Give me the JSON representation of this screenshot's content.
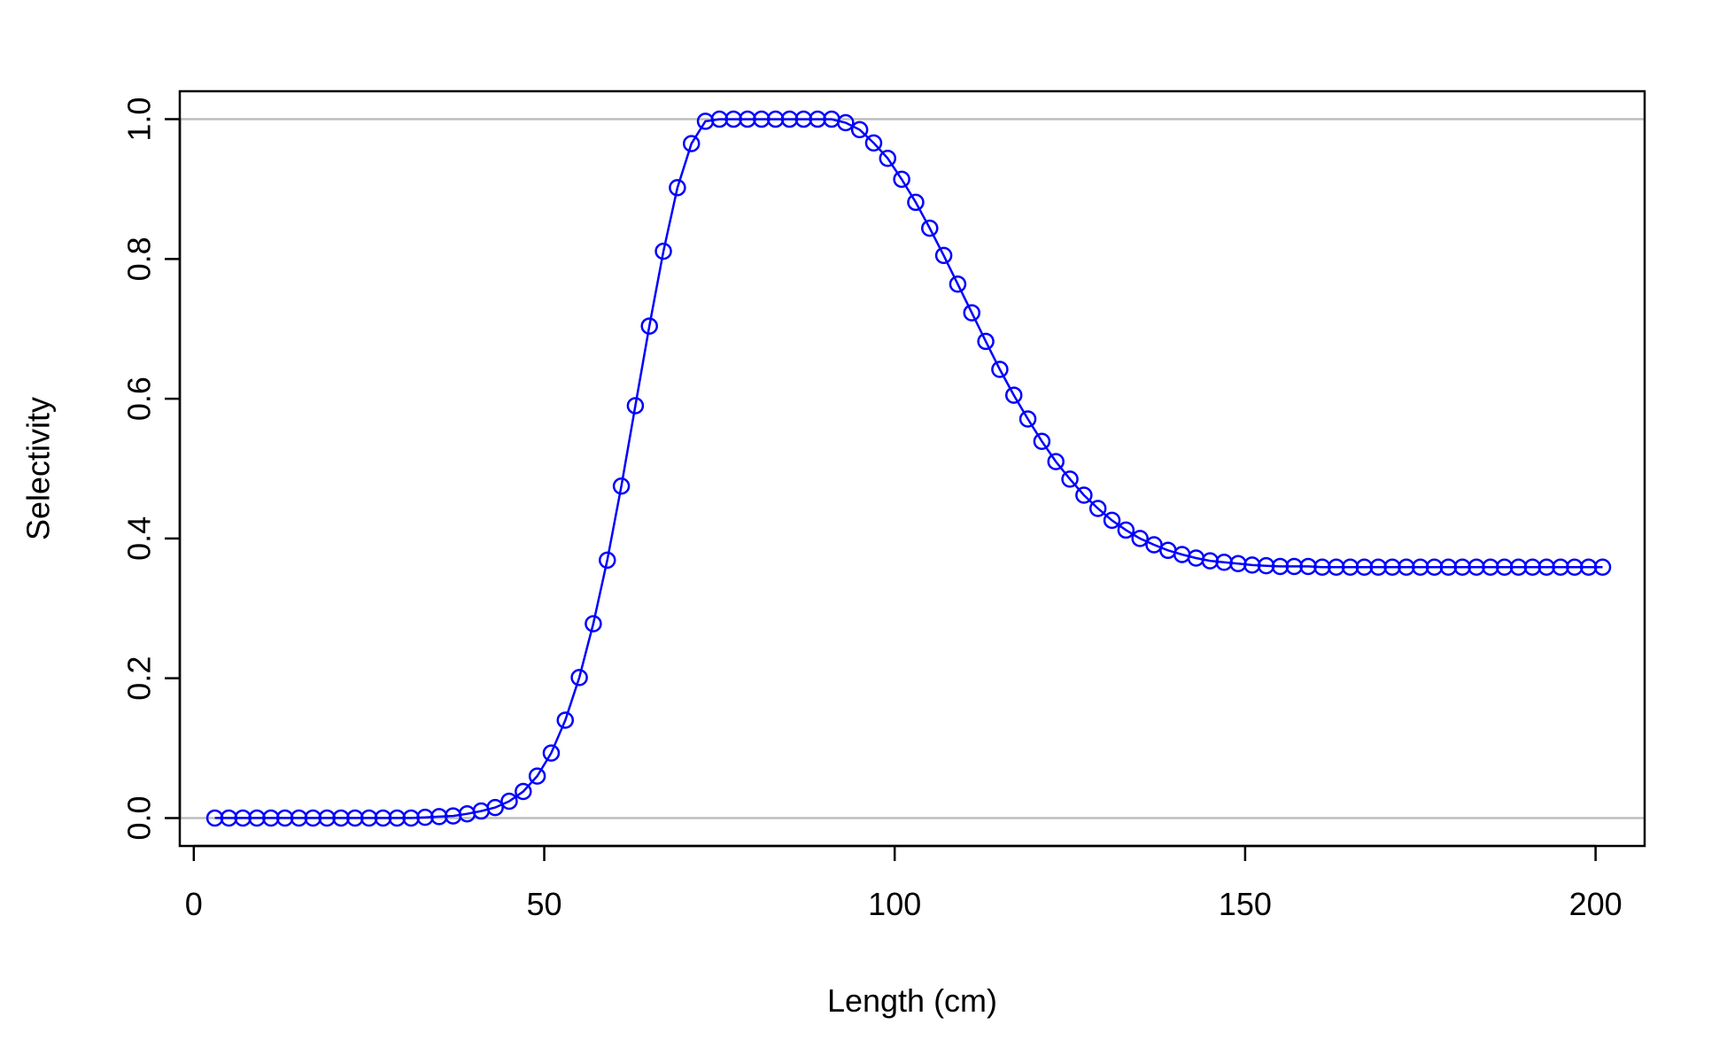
{
  "chart_data": {
    "type": "line",
    "title": "",
    "xlabel": "Length (cm)",
    "ylabel": "Selectivity",
    "xlim": [
      -2,
      207
    ],
    "ylim": [
      -0.04,
      1.04
    ],
    "x_ticks": [
      0,
      50,
      100,
      150,
      200
    ],
    "y_ticks": [
      0.0,
      0.2,
      0.4,
      0.6,
      0.8,
      1.0
    ],
    "x_tick_labels": [
      "0",
      "50",
      "100",
      "150",
      "200"
    ],
    "y_tick_labels": [
      "0.0",
      "0.2",
      "0.4",
      "0.6",
      "0.8",
      "1.0"
    ],
    "reference_lines": [
      0,
      1
    ],
    "grid": false,
    "legend": "none",
    "colors": {
      "series": "#0000ff",
      "reference": "#bebebe",
      "axis": "#000000"
    },
    "series": [
      {
        "marker": "open-circle",
        "x": [
          3,
          5,
          7,
          9,
          11,
          13,
          15,
          17,
          19,
          21,
          23,
          25,
          27,
          29,
          31,
          33,
          35,
          37,
          39,
          41,
          43,
          45,
          47,
          49,
          51,
          53,
          55,
          57,
          59,
          61,
          63,
          65,
          67,
          69,
          71,
          73,
          75,
          77,
          79,
          81,
          83,
          85,
          87,
          89,
          91,
          93,
          95,
          97,
          99,
          101,
          103,
          105,
          107,
          109,
          111,
          113,
          115,
          117,
          119,
          121,
          123,
          125,
          127,
          129,
          131,
          133,
          135,
          137,
          139,
          141,
          143,
          145,
          147,
          149,
          151,
          153,
          155,
          157,
          159,
          161,
          163,
          165,
          167,
          169,
          171,
          173,
          175,
          177,
          179,
          181,
          183,
          185,
          187,
          189,
          191,
          193,
          195,
          197,
          199,
          201
        ],
        "y": [
          0,
          0,
          0,
          0,
          0,
          0,
          0,
          0,
          0,
          0,
          0,
          0,
          0,
          0,
          0,
          0.001,
          0.002,
          0.003,
          0.006,
          0.01,
          0.015,
          0.024,
          0.038,
          0.06,
          0.093,
          0.14,
          0.201,
          0.278,
          0.369,
          0.475,
          0.59,
          0.704,
          0.811,
          0.902,
          0.965,
          0.997,
          1,
          1,
          1,
          1,
          1,
          1,
          1,
          1,
          1,
          0.995,
          0.985,
          0.966,
          0.944,
          0.914,
          0.881,
          0.844,
          0.805,
          0.764,
          0.723,
          0.682,
          0.642,
          0.605,
          0.571,
          0.539,
          0.51,
          0.485,
          0.462,
          0.443,
          0.426,
          0.412,
          0.4,
          0.391,
          0.383,
          0.377,
          0.372,
          0.368,
          0.366,
          0.364,
          0.362,
          0.361,
          0.36,
          0.36,
          0.36,
          0.359,
          0.359,
          0.359,
          0.359,
          0.359,
          0.359,
          0.359,
          0.359,
          0.359,
          0.359,
          0.359,
          0.359,
          0.359,
          0.359,
          0.359,
          0.359,
          0.359,
          0.359,
          0.359,
          0.359,
          0.359
        ]
      }
    ]
  }
}
